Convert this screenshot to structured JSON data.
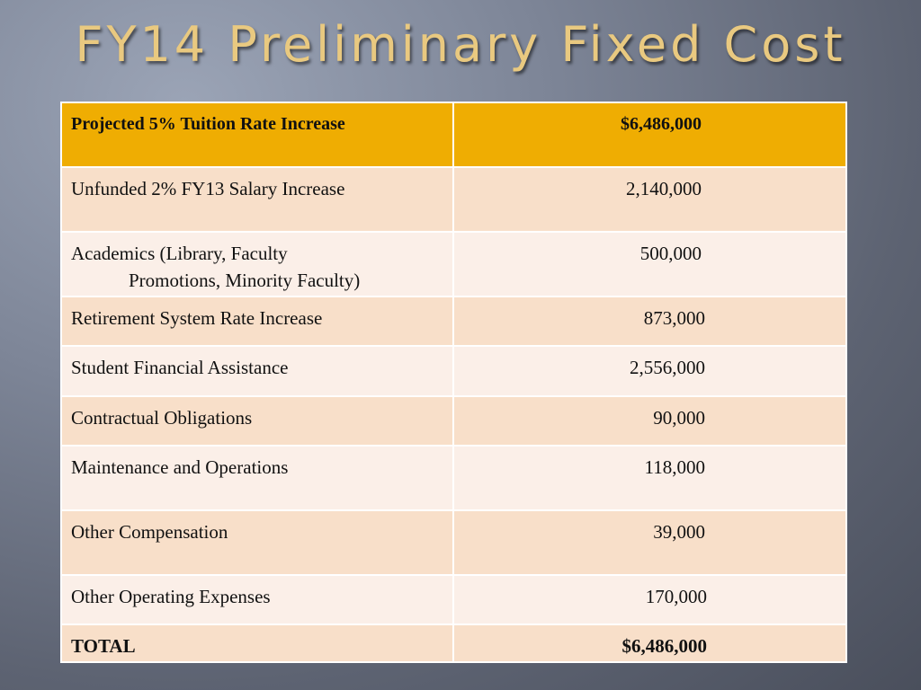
{
  "title": "FY14 Preliminary Fixed Cost",
  "table": {
    "header": {
      "label": "Projected 5% Tuition Rate Increase",
      "value": "$6,486,000"
    },
    "rows": [
      {
        "label": "Unfunded 2% FY13 Salary Increase",
        "value": "2,140,000"
      },
      {
        "label": "Academics (Library, Faculty",
        "label_cont": "Promotions, Minority Faculty)",
        "value": "500,000"
      },
      {
        "label": "Retirement System Rate Increase",
        "value": "873,000"
      },
      {
        "label": "Student Financial Assistance",
        "value": "2,556,000"
      },
      {
        "label": "Contractual Obligations",
        "value": "90,000"
      },
      {
        "label": "Maintenance and Operations",
        "value": "118,000"
      },
      {
        "label": "Other Compensation",
        "value": "39,000"
      },
      {
        "label": "Other Operating Expenses",
        "value": "170,000"
      }
    ],
    "total": {
      "label": "TOTAL",
      "value": "$6,486,000"
    }
  },
  "colors": {
    "header_bg": "#efad02",
    "row_a_bg": "#f8dfc9",
    "row_b_bg": "#fbefe8",
    "title_color": "#e9c980"
  }
}
